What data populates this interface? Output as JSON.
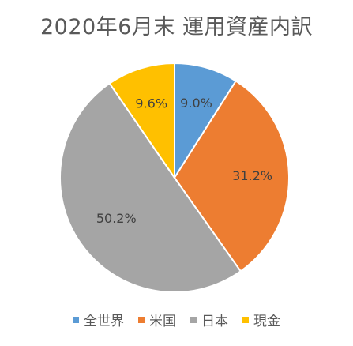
{
  "chart_data": {
    "type": "pie",
    "title": "2020年6月末 運用資産内訳",
    "categories": [
      "全世界",
      "米国",
      "日本",
      "現金"
    ],
    "values": [
      9.0,
      31.2,
      50.2,
      9.6
    ],
    "data_labels": [
      "9.0%",
      "31.2%",
      "50.2%",
      "9.6%"
    ],
    "colors": [
      "#5B9BD5",
      "#ED7D31",
      "#A5A5A5",
      "#FFC000"
    ],
    "start_angle_deg": 0,
    "direction": "clockwise",
    "legend_position": "bottom"
  }
}
